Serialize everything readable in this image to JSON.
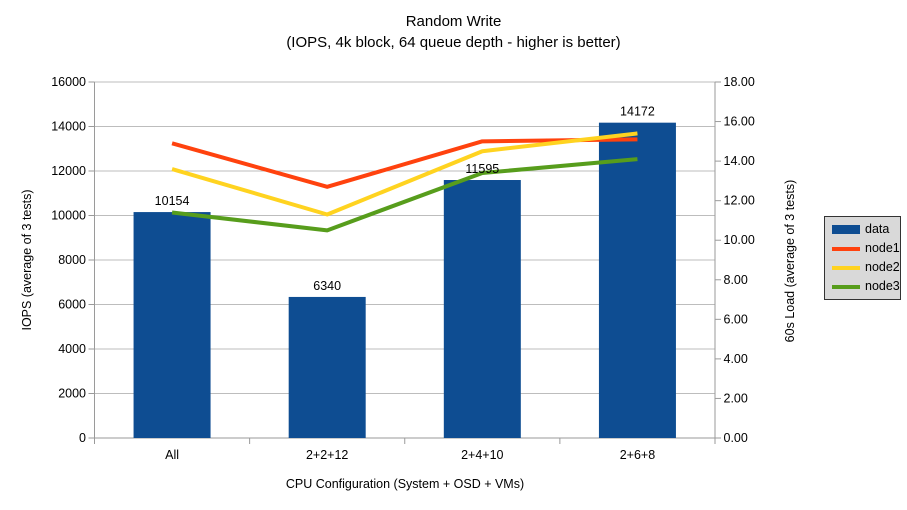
{
  "chart_data": {
    "type": "bar",
    "title": "Random Write",
    "subtitle": "(IOPS, 4k block, 64 queue depth - higher is better)",
    "categories": [
      "All",
      "2+2+12",
      "2+4+10",
      "2+6+8"
    ],
    "x_axis_title": "CPU Configuration (System + OSD + VMs)",
    "left_axis": {
      "title": "IOPS (average of 3 tests)",
      "min": 0,
      "max": 16000,
      "step": 2000,
      "tick_labels": [
        "0",
        "2000",
        "4000",
        "6000",
        "8000",
        "10000",
        "12000",
        "14000",
        "16000"
      ]
    },
    "right_axis": {
      "title": "60s Load (average of 3 tests)",
      "min": 0,
      "max": 18,
      "step": 2,
      "tick_labels": [
        "0.00",
        "2.00",
        "4.00",
        "6.00",
        "8.00",
        "10.00",
        "12.00",
        "14.00",
        "16.00",
        "18.00"
      ]
    },
    "series": [
      {
        "name": "data",
        "type": "bar",
        "axis": "left",
        "color": "#0E4D92",
        "values": [
          10154,
          6340,
          11595,
          14172
        ],
        "data_labels": [
          "10154",
          "6340",
          "11595",
          "14172"
        ]
      },
      {
        "name": "node1",
        "type": "line",
        "axis": "right",
        "color": "#FF420E",
        "values": [
          14.9,
          12.7,
          15.0,
          15.1
        ]
      },
      {
        "name": "node2",
        "type": "line",
        "axis": "right",
        "color": "#FFD320",
        "values": [
          13.6,
          11.3,
          14.5,
          15.4
        ]
      },
      {
        "name": "node3",
        "type": "line",
        "axis": "right",
        "color": "#579D1C",
        "values": [
          11.4,
          10.5,
          13.4,
          14.1
        ]
      }
    ],
    "grid": true,
    "legend_position": "right",
    "colors": {
      "background": "#ffffff",
      "grid": "#bdbdbd",
      "axis": "#9a9a9a",
      "text": "#000000",
      "legend_bg": "#d9d9d9",
      "legend_border": "#333333"
    }
  }
}
